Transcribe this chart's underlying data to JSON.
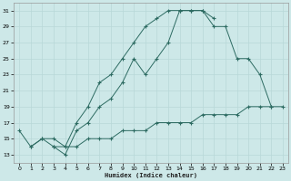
{
  "xlabel": "Humidex (Indice chaleur)",
  "background_color": "#cde8e8",
  "grid_color": "#b8d8d8",
  "line_color": "#2d6b62",
  "s1_x": [
    0,
    1,
    2,
    3,
    4,
    5,
    6,
    7,
    8,
    9,
    10,
    11,
    12,
    13,
    14,
    15,
    16,
    17
  ],
  "s1_y": [
    16,
    14,
    15,
    14,
    13,
    16,
    17,
    19,
    20,
    22,
    25,
    23,
    25,
    27,
    31,
    31,
    31,
    30
  ],
  "s2_x": [
    3,
    4,
    5,
    6,
    7,
    8,
    9,
    10,
    11,
    12,
    13,
    14,
    15,
    16,
    17,
    18,
    19,
    20,
    21,
    22,
    23
  ],
  "s2_y": [
    14,
    14,
    14,
    15,
    15,
    15,
    16,
    16,
    16,
    17,
    17,
    17,
    17,
    18,
    18,
    18,
    18,
    19,
    19,
    19,
    19
  ],
  "s3_x": [
    1,
    2,
    3,
    4,
    5,
    6,
    7,
    8,
    9,
    10,
    11,
    12,
    13,
    14,
    15,
    16,
    17,
    18,
    19,
    20,
    21,
    22
  ],
  "s3_y": [
    14,
    15,
    15,
    14,
    17,
    19,
    22,
    23,
    25,
    27,
    29,
    30,
    31,
    31,
    31,
    31,
    29,
    29,
    25,
    25,
    23,
    19
  ],
  "ylim": [
    12,
    32
  ],
  "xlim": [
    -0.5,
    23.5
  ],
  "yticks": [
    13,
    15,
    17,
    19,
    21,
    23,
    25,
    27,
    29,
    31
  ],
  "xticks": [
    0,
    1,
    2,
    3,
    4,
    5,
    6,
    7,
    8,
    9,
    10,
    11,
    12,
    13,
    14,
    15,
    16,
    17,
    18,
    19,
    20,
    21,
    22,
    23
  ]
}
